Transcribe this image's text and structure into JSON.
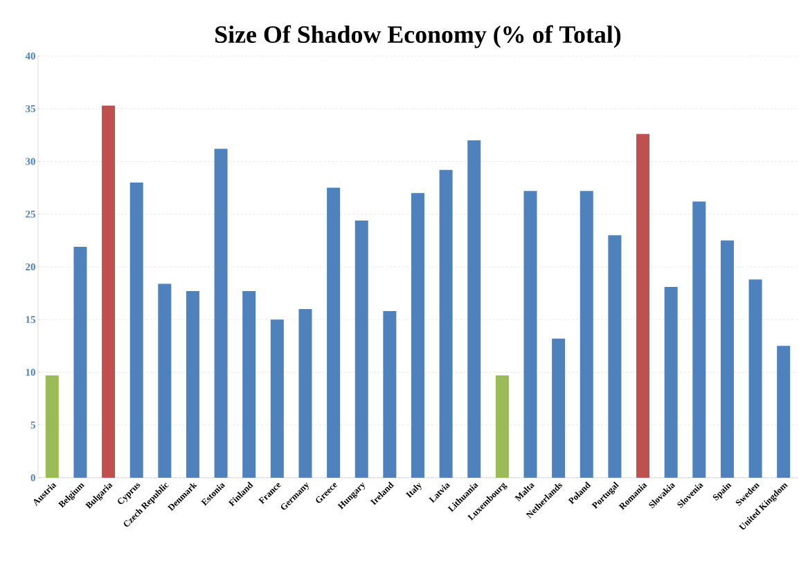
{
  "chart_data": {
    "type": "bar",
    "title": "Size Of Shadow Economy (% of Total)",
    "categories": [
      "Austria",
      "Belgium",
      "Bulgaria",
      "Cyprus",
      "Czech Republic",
      "Denmark",
      "Estonia",
      "Finland",
      "France",
      "Germany",
      "Greece",
      "Hungary",
      "Ireland",
      "Italy",
      "Latvia",
      "Lithuania",
      "Luxembourg",
      "Malta",
      "Netherlands",
      "Poland",
      "Portugal",
      "Romania",
      "Slovakia",
      "Slovenia",
      "Spain",
      "Sweden",
      "United Kingdom"
    ],
    "values": [
      9.7,
      21.9,
      35.3,
      28.0,
      18.4,
      17.7,
      31.2,
      17.7,
      15.0,
      16.0,
      27.5,
      24.4,
      15.8,
      27.0,
      29.2,
      32.0,
      9.7,
      27.2,
      13.2,
      27.2,
      23.0,
      32.6,
      18.1,
      26.2,
      22.5,
      18.8,
      12.5
    ],
    "colors": [
      "#9bbb59",
      "#4f81bd",
      "#c0504d",
      "#4f81bd",
      "#4f81bd",
      "#4f81bd",
      "#4f81bd",
      "#4f81bd",
      "#4f81bd",
      "#4f81bd",
      "#4f81bd",
      "#4f81bd",
      "#4f81bd",
      "#4f81bd",
      "#4f81bd",
      "#4f81bd",
      "#9bbb59",
      "#4f81bd",
      "#4f81bd",
      "#4f81bd",
      "#4f81bd",
      "#c0504d",
      "#4f81bd",
      "#4f81bd",
      "#4f81bd",
      "#4f81bd",
      "#4f81bd"
    ],
    "ylim": [
      0,
      40
    ],
    "yticks": [
      0,
      5,
      10,
      15,
      20,
      25,
      30,
      35,
      40
    ],
    "grid": "y"
  }
}
